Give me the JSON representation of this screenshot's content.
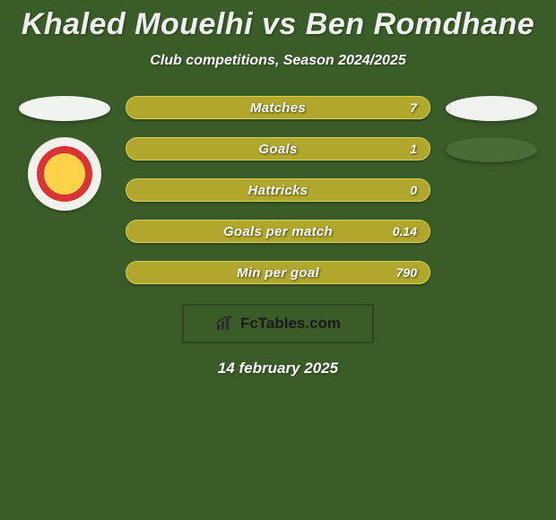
{
  "background_color": "#3a5c28",
  "title": {
    "text": "Khaled Mouelhi vs Ben Romdhane",
    "color": "#eef1f0",
    "shadow_color": "#1a2b12",
    "fontsize": 34
  },
  "subtitle": {
    "text": "Club competitions, Season 2024/2025",
    "color": "#ffffff",
    "fontsize": 16
  },
  "left": {
    "ellipse_color": "#f1f3f0",
    "badge": {
      "outer_color": "#f3f1ec",
      "ring_color": "#d93434",
      "core_color": "#ffd24a",
      "label": "club-badge-esperance"
    }
  },
  "right": {
    "ellipse1_color": "#f1f3f0",
    "ellipse2_color": "#4a6b37"
  },
  "bars": {
    "fill_color": "#b0a72c",
    "border_color": "#d7cf58",
    "text_color": "#ffffff",
    "height": 26,
    "radius": 13,
    "items": [
      {
        "label": "Matches",
        "value": "7"
      },
      {
        "label": "Goals",
        "value": "1"
      },
      {
        "label": "Hattricks",
        "value": "0"
      },
      {
        "label": "Goals per match",
        "value": "0.14"
      },
      {
        "label": "Min per goal",
        "value": "790"
      }
    ]
  },
  "brand": {
    "border_color": "#2e471f",
    "icon_color": "#2c2c2c",
    "text": "FcTables.com",
    "text_color": "#1a1a1a",
    "box_bg": "#3a5c28"
  },
  "footer_date": {
    "text": "14 february 2025",
    "color": "#ffffff"
  }
}
